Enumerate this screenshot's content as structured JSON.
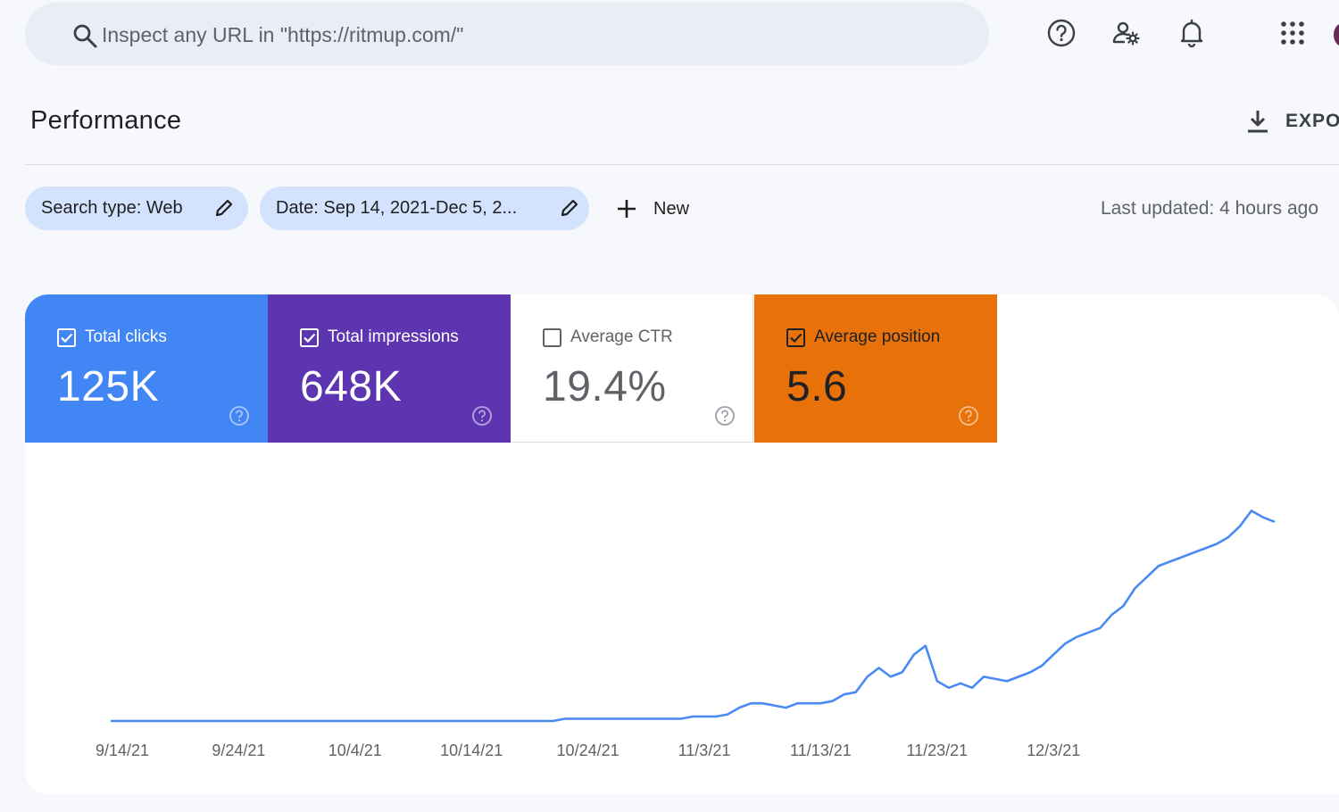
{
  "search": {
    "placeholder": "Inspect any URL in \"https://ritmup.com/\""
  },
  "header_icons": [
    "help-icon",
    "manage-users-icon",
    "notifications-bell-icon",
    "apps-grid-icon"
  ],
  "page": {
    "title": "Performance",
    "export_label": "EXPORT"
  },
  "filters": {
    "search_type": "Search type: Web",
    "date": "Date: Sep 14, 2021-Dec 5, 2...",
    "new_label": "New",
    "last_updated": "Last updated: 4 hours ago"
  },
  "metrics": [
    {
      "key": "clicks",
      "label": "Total clicks",
      "value": "125K",
      "checked": true,
      "color": "#4285f4"
    },
    {
      "key": "impressions",
      "label": "Total impressions",
      "value": "648K",
      "checked": true,
      "color": "#5e35b1"
    },
    {
      "key": "ctr",
      "label": "Average CTR",
      "value": "19.4%",
      "checked": false,
      "color": "#ffffff"
    },
    {
      "key": "position",
      "label": "Average position",
      "value": "5.6",
      "checked": true,
      "color": "#e8710a"
    }
  ],
  "chart_data": {
    "type": "line",
    "x_start": "9/13/21",
    "x_ticks": [
      "9/14/21",
      "9/24/21",
      "10/4/21",
      "10/14/21",
      "10/24/21",
      "11/3/21",
      "11/13/21",
      "11/23/21",
      "12/3/21"
    ],
    "ylim": [
      0,
      100
    ],
    "grid": false,
    "series": [
      {
        "name": "Total clicks",
        "color": "#4a8af4",
        "values": [
          0,
          0,
          0,
          0,
          0,
          0,
          0,
          0,
          0,
          0,
          0,
          0,
          0,
          0,
          0,
          0,
          0,
          0,
          0,
          0,
          0,
          0,
          0,
          0,
          0,
          0,
          0,
          0,
          0,
          0,
          0,
          0,
          0,
          0,
          0,
          0,
          0,
          0,
          0,
          1,
          1,
          1,
          1,
          1,
          1,
          1,
          1,
          1,
          1,
          1,
          2,
          2,
          2,
          3,
          6,
          8,
          8,
          7,
          6,
          8,
          8,
          8,
          9,
          12,
          13,
          20,
          24,
          20,
          22,
          30,
          34,
          18,
          15,
          17,
          15,
          20,
          19,
          18,
          20,
          22,
          25,
          30,
          35,
          38,
          40,
          42,
          48,
          52,
          60,
          65,
          70,
          72,
          74,
          76,
          78,
          80,
          83,
          88,
          95,
          92,
          90
        ]
      }
    ]
  }
}
